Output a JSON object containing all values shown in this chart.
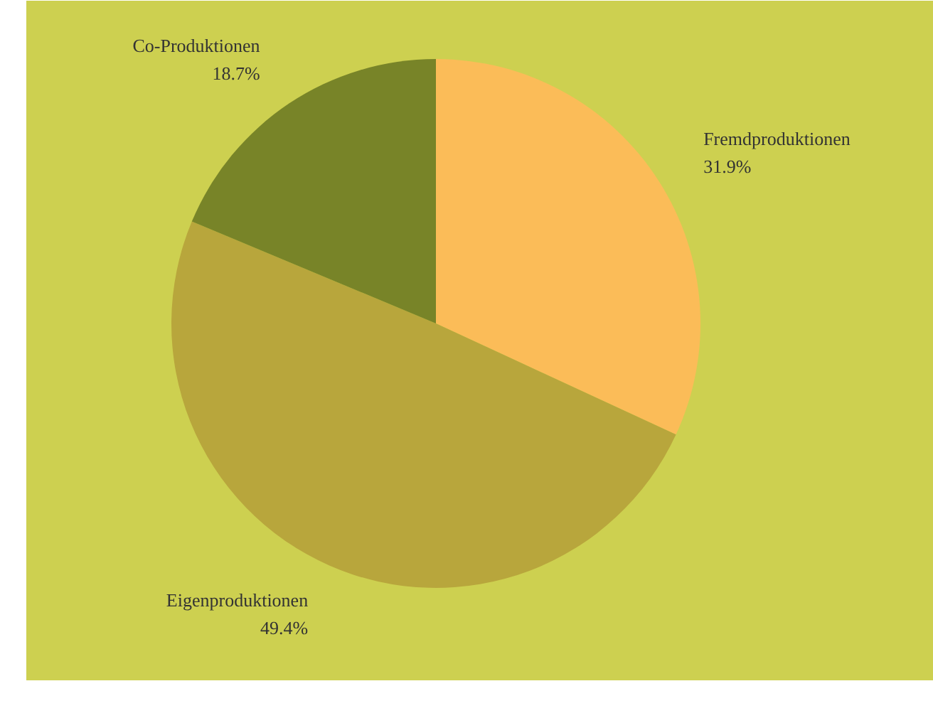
{
  "chart_data": {
    "type": "pie",
    "categories": [
      "Fremdproduktionen",
      "Eigenproduktionen",
      "Co-Produktionen"
    ],
    "values": [
      31.9,
      49.4,
      18.7
    ],
    "colors": [
      "#fbbc58",
      "#b8a63c",
      "#788428"
    ],
    "value_labels": [
      "31.9%",
      "49.4%",
      "18.7%"
    ],
    "legend": false
  }
}
